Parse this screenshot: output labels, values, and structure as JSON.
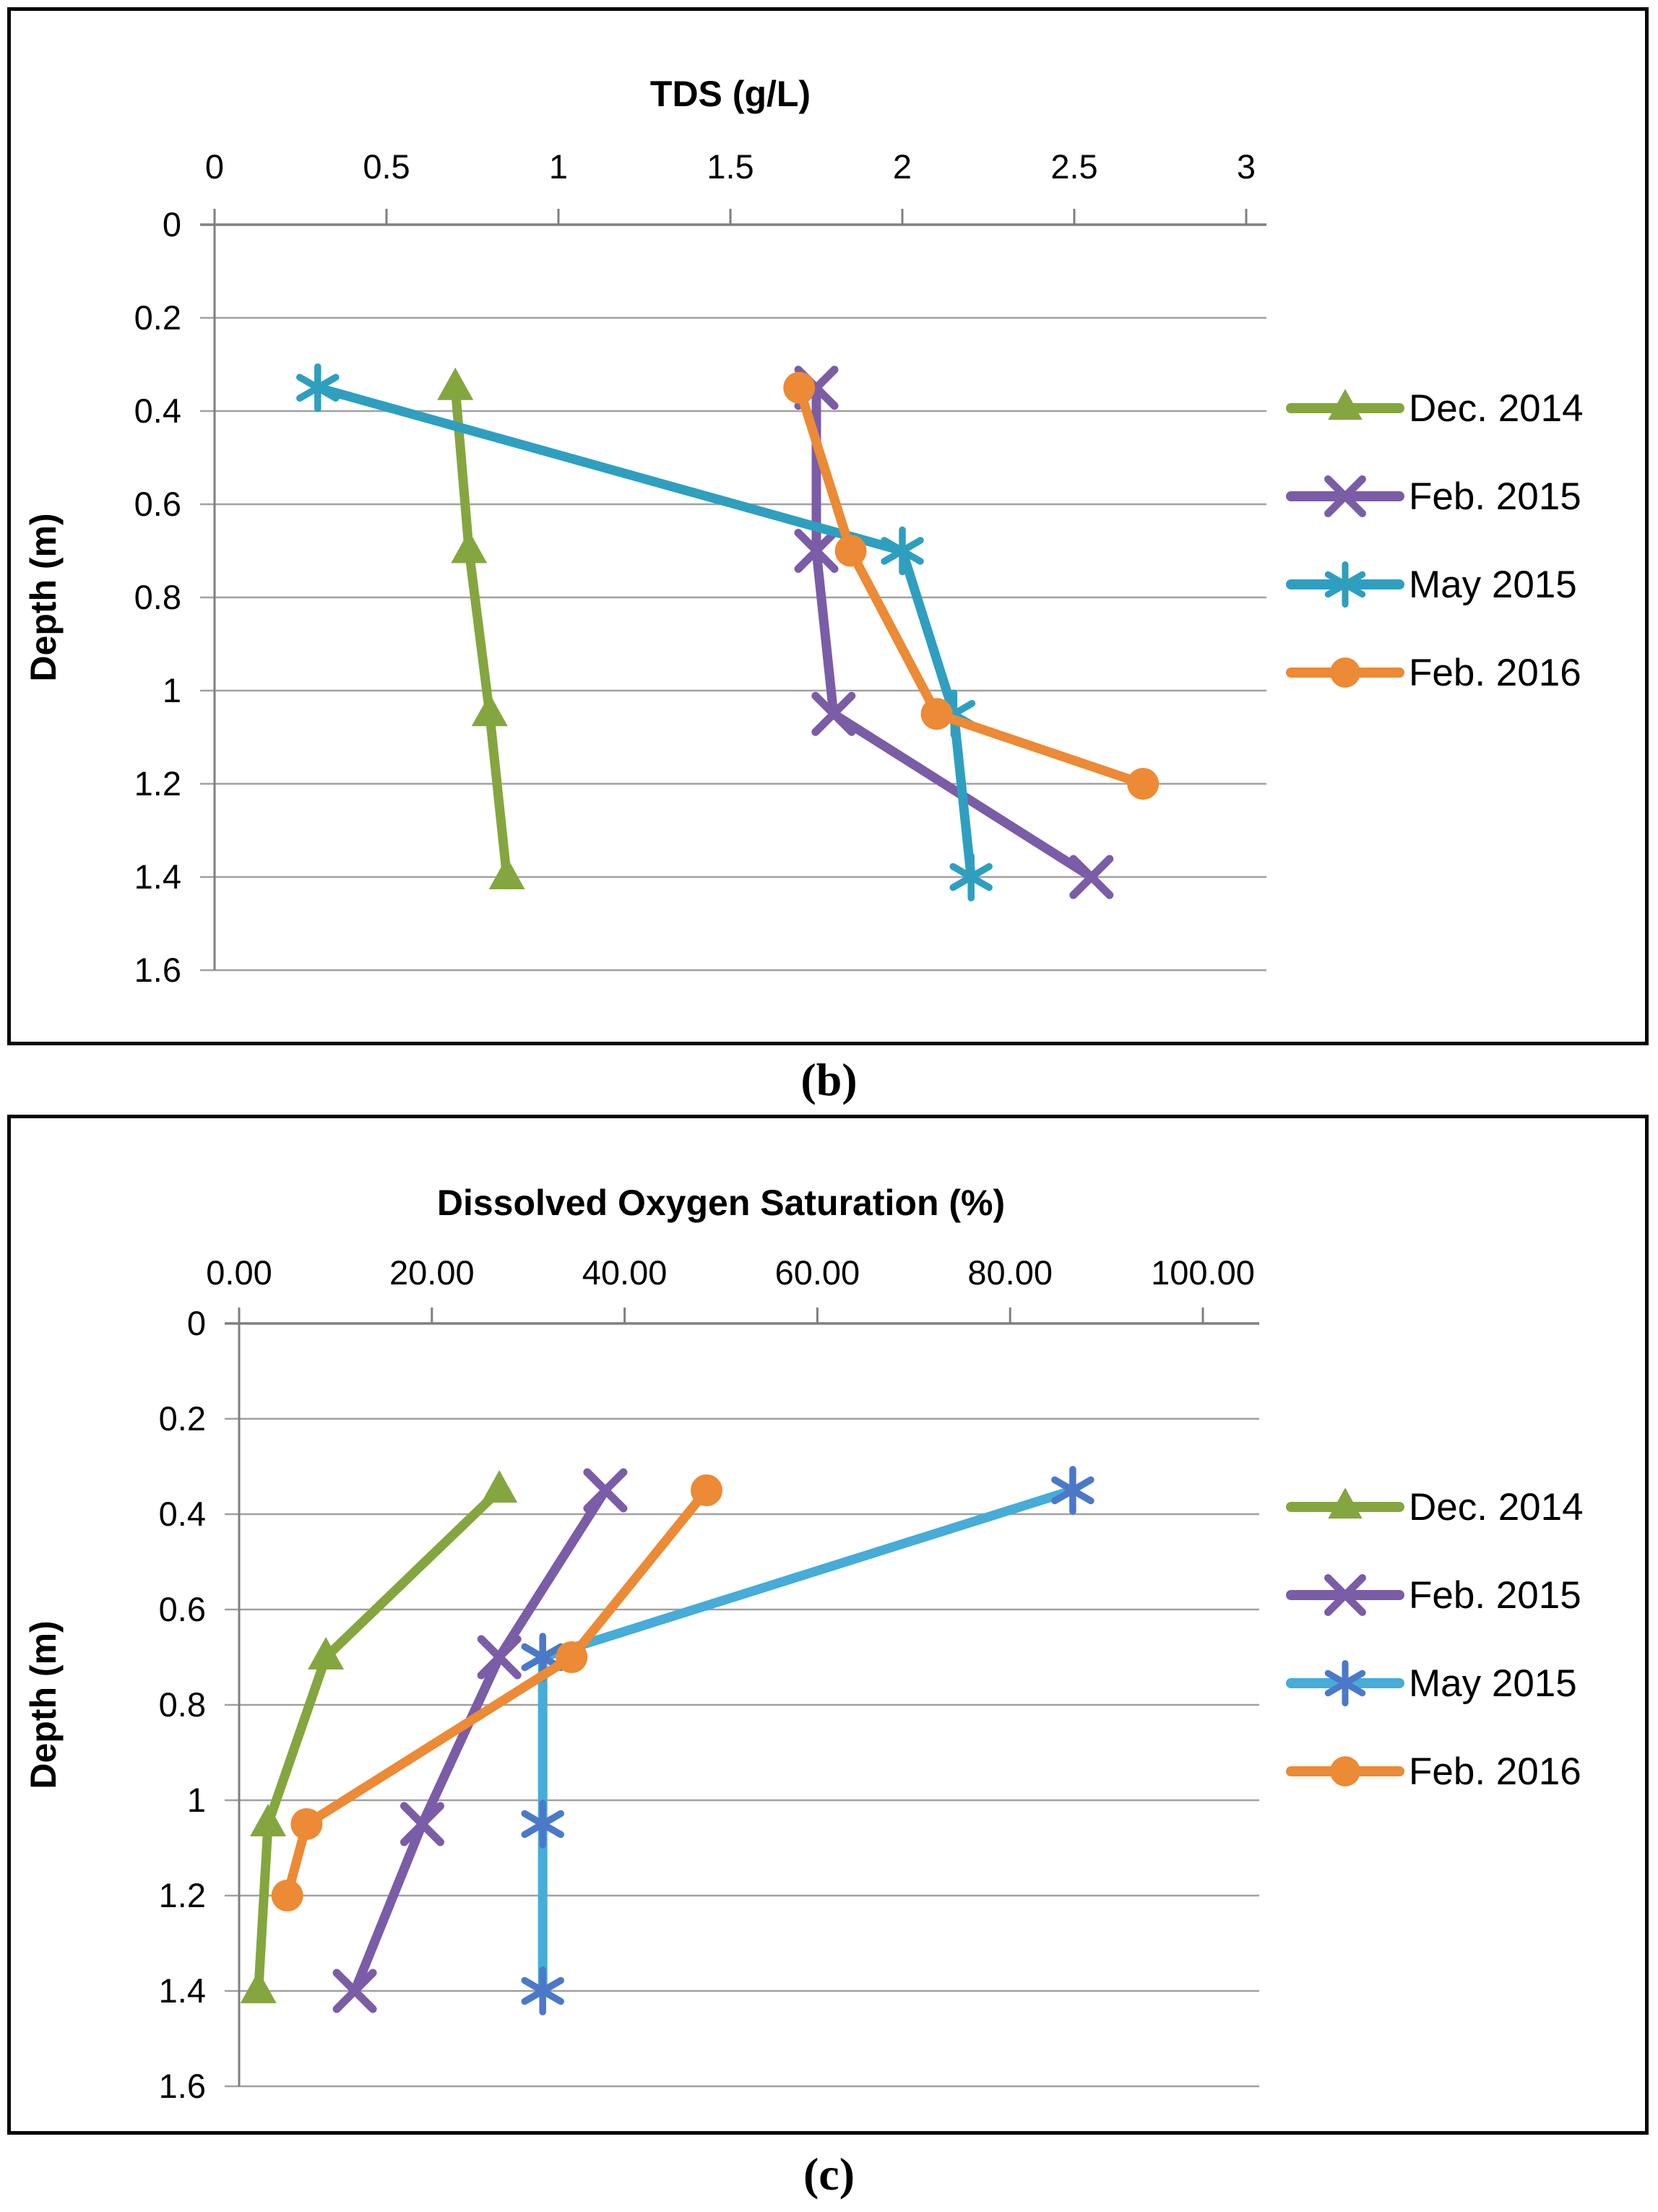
{
  "page": {
    "background": "#ffffff"
  },
  "figures": [
    {
      "label": "(b)"
    },
    {
      "label": "(c)"
    }
  ],
  "chart_data": [
    {
      "type": "line",
      "panel": "b",
      "title": "TDS (g/L)",
      "xlabel": "TDS (g/L)",
      "ylabel": "Depth (m)",
      "x_axis_side": "top",
      "xlim": [
        0,
        3
      ],
      "x_ticks": [
        0,
        0.5,
        1,
        1.5,
        2,
        2.5,
        3
      ],
      "x_tick_labels": [
        "0",
        "0.5",
        "1",
        "1.5",
        "2",
        "2.5",
        "3"
      ],
      "ylim": [
        0,
        1.6
      ],
      "y_ticks": [
        0,
        0.2,
        0.4,
        0.6,
        0.8,
        1.0,
        1.2,
        1.4,
        1.6
      ],
      "y_tick_labels": [
        "0",
        "0.2",
        "0.4",
        "0.6",
        "0.8",
        "1",
        "1.2",
        "1.4",
        "1.6"
      ],
      "grid": "horizontal",
      "legend_position": "right",
      "grid_color": "#a0a0a0",
      "axis_color": "#7f7f7f",
      "series": [
        {
          "name": "Dec. 2014",
          "color": "#84a63f",
          "marker": "triangle",
          "points": [
            [
              0.7,
              0.35
            ],
            [
              0.74,
              0.7
            ],
            [
              0.8,
              1.05
            ],
            [
              0.85,
              1.4
            ]
          ]
        },
        {
          "name": "Feb. 2015",
          "color": "#7b5ca7",
          "marker": "x",
          "points": [
            [
              1.75,
              0.35
            ],
            [
              1.75,
              0.7
            ],
            [
              1.8,
              1.05
            ],
            [
              2.55,
              1.4
            ]
          ]
        },
        {
          "name": "May 2015",
          "color": "#2f9fc0",
          "marker": "asterisk",
          "points": [
            [
              0.3,
              0.35
            ],
            [
              2.0,
              0.7
            ],
            [
              2.15,
              1.05
            ],
            [
              2.2,
              1.4
            ]
          ]
        },
        {
          "name": "Feb. 2016",
          "color": "#ec8a35",
          "marker": "circle",
          "points": [
            [
              1.7,
              0.35
            ],
            [
              1.85,
              0.7
            ],
            [
              2.1,
              1.05
            ],
            [
              2.7,
              1.2
            ]
          ]
        }
      ]
    },
    {
      "type": "line",
      "panel": "c",
      "title": "Dissolved Oxygen Saturation (%)",
      "xlabel": "Dissolved Oxygen Saturation (%)",
      "ylabel": "Depth (m)",
      "x_axis_side": "top",
      "xlim": [
        0,
        100
      ],
      "x_ticks": [
        0,
        20,
        40,
        60,
        80,
        100
      ],
      "x_tick_labels": [
        "0.00",
        "20.00",
        "40.00",
        "60.00",
        "80.00",
        "100.00"
      ],
      "ylim": [
        0,
        1.6
      ],
      "y_ticks": [
        0,
        0.2,
        0.4,
        0.6,
        0.8,
        1.0,
        1.2,
        1.4,
        1.6
      ],
      "y_tick_labels": [
        "0",
        "0.2",
        "0.4",
        "0.6",
        "0.8",
        "1",
        "1.2",
        "1.4",
        "1.6"
      ],
      "grid": "horizontal",
      "legend_position": "right",
      "grid_color": "#a0a0a0",
      "axis_color": "#7f7f7f",
      "series": [
        {
          "name": "Dec. 2014",
          "color": "#84a63f",
          "marker": "triangle",
          "points": [
            [
              27,
              0.35
            ],
            [
              9,
              0.7
            ],
            [
              3,
              1.05
            ],
            [
              2,
              1.4
            ]
          ]
        },
        {
          "name": "Feb. 2015",
          "color": "#7b5ca7",
          "marker": "x",
          "points": [
            [
              38,
              0.35
            ],
            [
              27,
              0.7
            ],
            [
              19,
              1.05
            ],
            [
              12,
              1.4
            ]
          ]
        },
        {
          "name": "May 2015",
          "color": "#46acd8",
          "marker_color": "#4b79c8",
          "marker": "asterisk",
          "points": [
            [
              86.5,
              0.35
            ],
            [
              31.5,
              0.7
            ],
            [
              31.5,
              1.05
            ],
            [
              31.5,
              1.4
            ]
          ]
        },
        {
          "name": "Feb. 2016",
          "color": "#ec8a35",
          "marker": "circle",
          "points": [
            [
              48.5,
              0.35
            ],
            [
              34.5,
              0.7
            ],
            [
              7,
              1.05
            ],
            [
              5,
              1.2
            ]
          ]
        }
      ]
    }
  ]
}
